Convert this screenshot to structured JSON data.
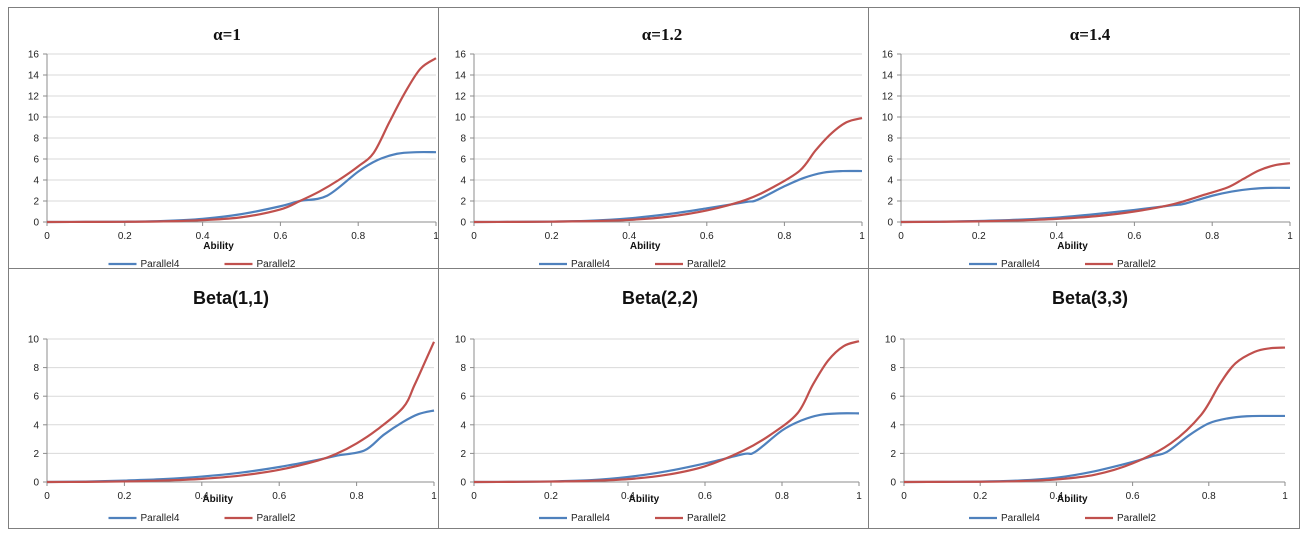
{
  "colors": {
    "parallel4": "#4f81bd",
    "parallel2": "#c0504d"
  },
  "chart_data": [
    {
      "type": "line",
      "title": "α=1",
      "xlabel": "Ability",
      "xlim": [
        0,
        1
      ],
      "ylim": [
        0,
        16
      ],
      "y_ticks": [
        0,
        2,
        4,
        6,
        8,
        10,
        12,
        14,
        16
      ],
      "x_ticks": [
        "0",
        "0.2",
        "0.4",
        "0.6",
        "0.8",
        "1"
      ],
      "grid": true,
      "legend": "bottom",
      "series": [
        {
          "name": "Parallel4",
          "x": [
            0,
            0.1,
            0.2,
            0.3,
            0.4,
            0.5,
            0.6,
            0.65,
            0.72,
            0.8,
            0.85,
            0.9,
            0.95,
            1.0
          ],
          "values": [
            0,
            0.01,
            0.03,
            0.1,
            0.3,
            0.75,
            1.5,
            2.0,
            2.5,
            4.8,
            5.9,
            6.5,
            6.65,
            6.65
          ]
        },
        {
          "name": "Parallel2",
          "x": [
            0,
            0.1,
            0.2,
            0.3,
            0.4,
            0.5,
            0.6,
            0.65,
            0.7,
            0.75,
            0.8,
            0.84,
            0.88,
            0.92,
            0.96,
            1.0
          ],
          "values": [
            0,
            0.01,
            0.02,
            0.06,
            0.18,
            0.45,
            1.2,
            2.0,
            2.9,
            4.0,
            5.3,
            6.6,
            9.5,
            12.3,
            14.6,
            15.6
          ]
        }
      ]
    },
    {
      "type": "line",
      "title": "α=1.2",
      "xlabel": "Ability",
      "xlim": [
        0,
        1
      ],
      "ylim": [
        0,
        16
      ],
      "y_ticks": [
        0,
        2,
        4,
        6,
        8,
        10,
        12,
        14,
        16
      ],
      "x_ticks": [
        "0",
        "0.2",
        "0.4",
        "0.6",
        "0.8",
        "1"
      ],
      "grid": true,
      "legend": "bottom",
      "series": [
        {
          "name": "Parallel4",
          "x": [
            0,
            0.1,
            0.2,
            0.3,
            0.4,
            0.5,
            0.6,
            0.7,
            0.73,
            0.8,
            0.85,
            0.9,
            0.95,
            1.0
          ],
          "values": [
            0,
            0.01,
            0.04,
            0.12,
            0.35,
            0.75,
            1.3,
            1.9,
            2.1,
            3.4,
            4.2,
            4.7,
            4.85,
            4.85
          ]
        },
        {
          "name": "Parallel2",
          "x": [
            0,
            0.1,
            0.2,
            0.3,
            0.4,
            0.5,
            0.6,
            0.7,
            0.77,
            0.84,
            0.88,
            0.92,
            0.96,
            1.0
          ],
          "values": [
            0,
            0.01,
            0.03,
            0.08,
            0.2,
            0.5,
            1.1,
            2.1,
            3.3,
            4.9,
            6.8,
            8.4,
            9.5,
            9.9
          ]
        }
      ]
    },
    {
      "type": "line",
      "title": "α=1.4",
      "xlabel": "Ability",
      "xlim": [
        0,
        1
      ],
      "ylim": [
        0,
        16
      ],
      "y_ticks": [
        0,
        2,
        4,
        6,
        8,
        10,
        12,
        14,
        16
      ],
      "x_ticks": [
        "0",
        "0.2",
        "0.4",
        "0.6",
        "0.8",
        "1"
      ],
      "grid": true,
      "legend": "bottom",
      "series": [
        {
          "name": "Parallel4",
          "x": [
            0,
            0.1,
            0.2,
            0.3,
            0.4,
            0.5,
            0.6,
            0.7,
            0.73,
            0.8,
            0.85,
            0.9,
            0.95,
            1.0
          ],
          "values": [
            0,
            0.03,
            0.1,
            0.22,
            0.42,
            0.75,
            1.15,
            1.6,
            1.75,
            2.5,
            2.9,
            3.15,
            3.25,
            3.25
          ]
        },
        {
          "name": "Parallel2",
          "x": [
            0,
            0.1,
            0.2,
            0.3,
            0.4,
            0.5,
            0.6,
            0.7,
            0.78,
            0.84,
            0.88,
            0.92,
            0.96,
            1.0
          ],
          "values": [
            0,
            0.02,
            0.06,
            0.15,
            0.3,
            0.55,
            1.0,
            1.7,
            2.6,
            3.3,
            4.1,
            4.9,
            5.4,
            5.6
          ]
        }
      ]
    },
    {
      "type": "line",
      "title": "Beta(1,1)",
      "xlabel": "Ability",
      "xlim": [
        0,
        1
      ],
      "ylim": [
        0,
        10
      ],
      "y_ticks": [
        0,
        2,
        4,
        6,
        8,
        10
      ],
      "x_ticks": [
        "0",
        "0.2",
        "0.4",
        "0.6",
        "0.8",
        "1"
      ],
      "grid": true,
      "legend": "bottom",
      "series": [
        {
          "name": "Parallel4",
          "x": [
            0,
            0.1,
            0.2,
            0.3,
            0.4,
            0.5,
            0.6,
            0.7,
            0.75,
            0.82,
            0.87,
            0.92,
            0.96,
            1.0
          ],
          "values": [
            0,
            0.03,
            0.1,
            0.2,
            0.38,
            0.65,
            1.05,
            1.55,
            1.85,
            2.2,
            3.3,
            4.2,
            4.75,
            5.0
          ]
        },
        {
          "name": "Parallel2",
          "x": [
            0,
            0.1,
            0.2,
            0.3,
            0.4,
            0.5,
            0.6,
            0.7,
            0.75,
            0.8,
            0.85,
            0.92,
            0.95,
            0.98,
            1.0
          ],
          "values": [
            0,
            0.01,
            0.04,
            0.1,
            0.22,
            0.45,
            0.85,
            1.5,
            2.0,
            2.7,
            3.6,
            5.2,
            6.8,
            8.6,
            9.8
          ]
        }
      ]
    },
    {
      "type": "line",
      "title": "Beta(2,2)",
      "xlabel": "Ability",
      "xlim": [
        0,
        1
      ],
      "ylim": [
        0,
        10
      ],
      "y_ticks": [
        0,
        2,
        4,
        6,
        8,
        10
      ],
      "x_ticks": [
        "0",
        "0.2",
        "0.4",
        "0.6",
        "0.8",
        "1"
      ],
      "grid": true,
      "legend": "bottom",
      "series": [
        {
          "name": "Parallel4",
          "x": [
            0,
            0.1,
            0.2,
            0.3,
            0.4,
            0.5,
            0.6,
            0.7,
            0.73,
            0.8,
            0.85,
            0.9,
            0.95,
            1.0
          ],
          "values": [
            0,
            0.01,
            0.04,
            0.12,
            0.35,
            0.75,
            1.3,
            1.95,
            2.1,
            3.6,
            4.3,
            4.7,
            4.8,
            4.8
          ]
        },
        {
          "name": "Parallel2",
          "x": [
            0,
            0.1,
            0.2,
            0.3,
            0.4,
            0.5,
            0.6,
            0.7,
            0.77,
            0.84,
            0.88,
            0.92,
            0.96,
            1.0
          ],
          "values": [
            0,
            0.01,
            0.03,
            0.08,
            0.2,
            0.5,
            1.1,
            2.2,
            3.3,
            4.8,
            6.8,
            8.5,
            9.5,
            9.85
          ]
        }
      ]
    },
    {
      "type": "line",
      "title": "Beta(3,3)",
      "xlabel": "Ability",
      "xlim": [
        0,
        1
      ],
      "ylim": [
        0,
        10
      ],
      "y_ticks": [
        0,
        2,
        4,
        6,
        8,
        10
      ],
      "x_ticks": [
        "0",
        "0.2",
        "0.4",
        "0.6",
        "0.8",
        "1"
      ],
      "grid": true,
      "legend": "bottom",
      "series": [
        {
          "name": "Parallel4",
          "x": [
            0,
            0.1,
            0.2,
            0.3,
            0.4,
            0.5,
            0.6,
            0.65,
            0.69,
            0.75,
            0.8,
            0.85,
            0.9,
            0.95,
            1.0
          ],
          "values": [
            0,
            0.01,
            0.03,
            0.1,
            0.3,
            0.75,
            1.4,
            1.8,
            2.1,
            3.3,
            4.1,
            4.45,
            4.6,
            4.62,
            4.62
          ]
        },
        {
          "name": "Parallel2",
          "x": [
            0,
            0.1,
            0.2,
            0.3,
            0.4,
            0.5,
            0.6,
            0.7,
            0.78,
            0.83,
            0.87,
            0.92,
            0.96,
            1.0
          ],
          "values": [
            0,
            0.01,
            0.02,
            0.06,
            0.18,
            0.5,
            1.3,
            2.7,
            4.7,
            6.9,
            8.3,
            9.1,
            9.35,
            9.4
          ]
        }
      ]
    }
  ]
}
